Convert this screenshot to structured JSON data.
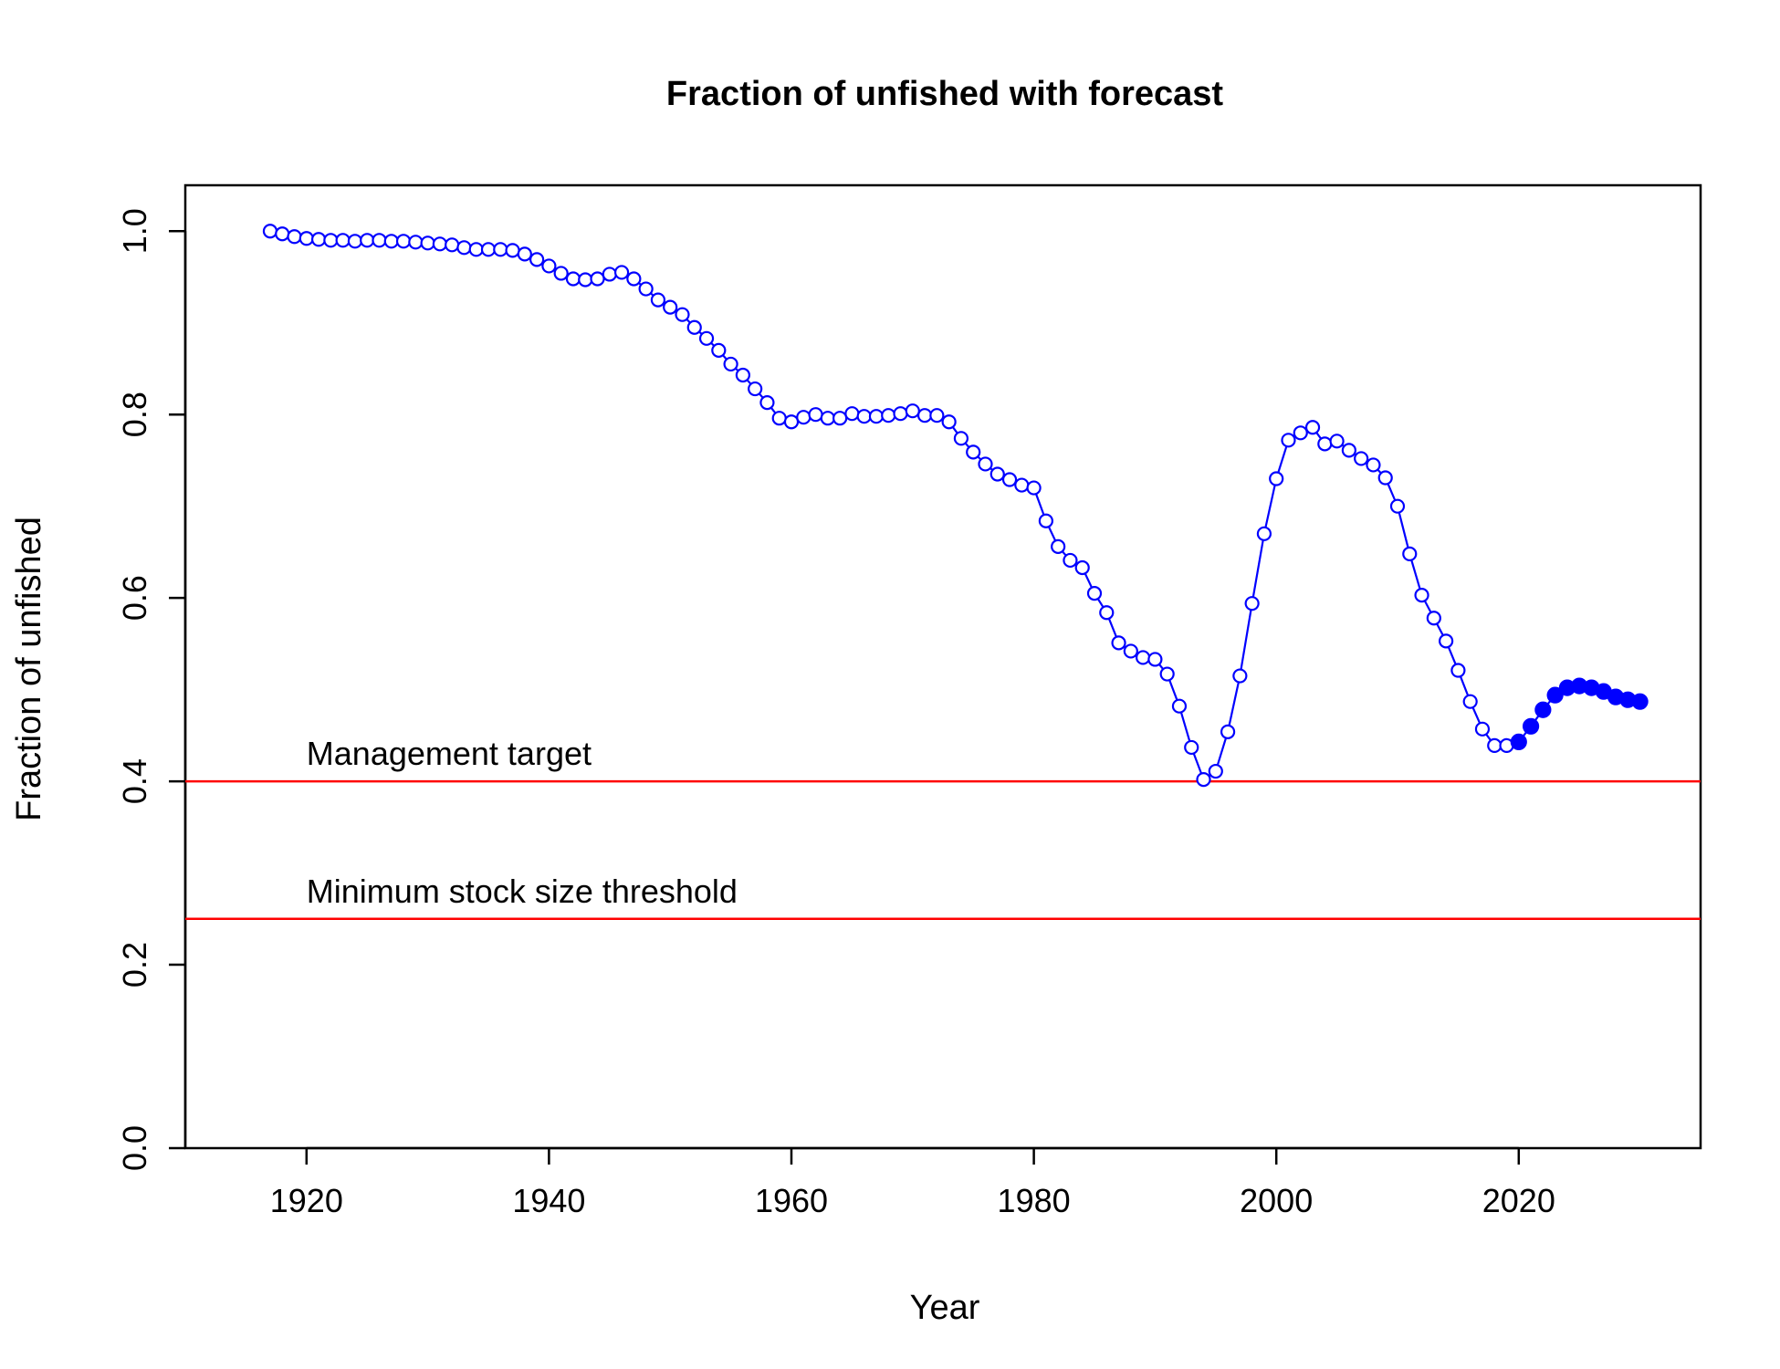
{
  "chart_data": {
    "type": "line",
    "title": "Fraction of unfished with forecast",
    "xlabel": "Year",
    "ylabel": "Fraction of unfished",
    "xlim": [
      1910,
      2035
    ],
    "ylim": [
      0,
      1.05
    ],
    "xticks": [
      1920,
      1940,
      1960,
      1980,
      2000,
      2020
    ],
    "yticks": [
      0.0,
      0.2,
      0.4,
      0.6,
      0.8,
      1.0
    ],
    "xtick_labels": [
      "1920",
      "1940",
      "1960",
      "1980",
      "2000",
      "2020"
    ],
    "ytick_labels": [
      "0.0",
      "0.2",
      "0.4",
      "0.6",
      "0.8",
      "1.0"
    ],
    "grid": false,
    "line_color": "#0000ff",
    "reference_color": "#ff0000",
    "series": [
      {
        "marker": "open-circle",
        "x": [
          1917,
          1918,
          1919,
          1920,
          1921,
          1922,
          1923,
          1924,
          1925,
          1926,
          1927,
          1928,
          1929,
          1930,
          1931,
          1932,
          1933,
          1934,
          1935,
          1936,
          1937,
          1938,
          1939,
          1940,
          1941,
          1942,
          1943,
          1944,
          1945,
          1946,
          1947,
          1948,
          1949,
          1950,
          1951,
          1952,
          1953,
          1954,
          1955,
          1956,
          1957,
          1958,
          1959,
          1960,
          1961,
          1962,
          1963,
          1964,
          1965,
          1966,
          1967,
          1968,
          1969,
          1970,
          1971,
          1972,
          1973,
          1974,
          1975,
          1976,
          1977,
          1978,
          1979,
          1980,
          1981,
          1982,
          1983,
          1984,
          1985,
          1986,
          1987,
          1988,
          1989,
          1990,
          1991,
          1992,
          1993,
          1994,
          1995,
          1996,
          1997,
          1998,
          1999,
          2000,
          2001,
          2002,
          2003,
          2004,
          2005,
          2006,
          2007,
          2008,
          2009,
          2010,
          2011,
          2012,
          2013,
          2014,
          2015,
          2016,
          2017,
          2018,
          2019
        ],
        "y": [
          1.0,
          0.997,
          0.994,
          0.992,
          0.991,
          0.99,
          0.99,
          0.989,
          0.99,
          0.99,
          0.989,
          0.989,
          0.988,
          0.987,
          0.986,
          0.985,
          0.982,
          0.98,
          0.98,
          0.98,
          0.979,
          0.975,
          0.969,
          0.962,
          0.954,
          0.948,
          0.947,
          0.948,
          0.953,
          0.955,
          0.948,
          0.937,
          0.925,
          0.917,
          0.909,
          0.895,
          0.883,
          0.87,
          0.855,
          0.843,
          0.828,
          0.813,
          0.796,
          0.792,
          0.797,
          0.8,
          0.796,
          0.796,
          0.801,
          0.798,
          0.798,
          0.799,
          0.801,
          0.804,
          0.799,
          0.799,
          0.792,
          0.774,
          0.759,
          0.746,
          0.735,
          0.729,
          0.723,
          0.72,
          0.684,
          0.656,
          0.641,
          0.633,
          0.605,
          0.584,
          0.551,
          0.542,
          0.535,
          0.533,
          0.517,
          0.482,
          0.437,
          0.402,
          0.411,
          0.454,
          0.515,
          0.594,
          0.67,
          0.73,
          0.772,
          0.78,
          0.786,
          0.768,
          0.771,
          0.761,
          0.752,
          0.745,
          0.731,
          0.7,
          0.648,
          0.603,
          0.578,
          0.553,
          0.521,
          0.487,
          0.457,
          0.439,
          0.439
        ]
      },
      {
        "marker": "filled-circle",
        "x": [
          2020,
          2021,
          2022,
          2023,
          2024,
          2025,
          2026,
          2027,
          2028,
          2029,
          2030
        ],
        "y": [
          0.443,
          0.46,
          0.478,
          0.494,
          0.502,
          0.504,
          0.502,
          0.498,
          0.492,
          0.489,
          0.487
        ]
      }
    ],
    "reference_lines": [
      {
        "y": 0.4,
        "label": "Management target"
      },
      {
        "y": 0.25,
        "label": "Minimum stock size threshold"
      }
    ]
  }
}
